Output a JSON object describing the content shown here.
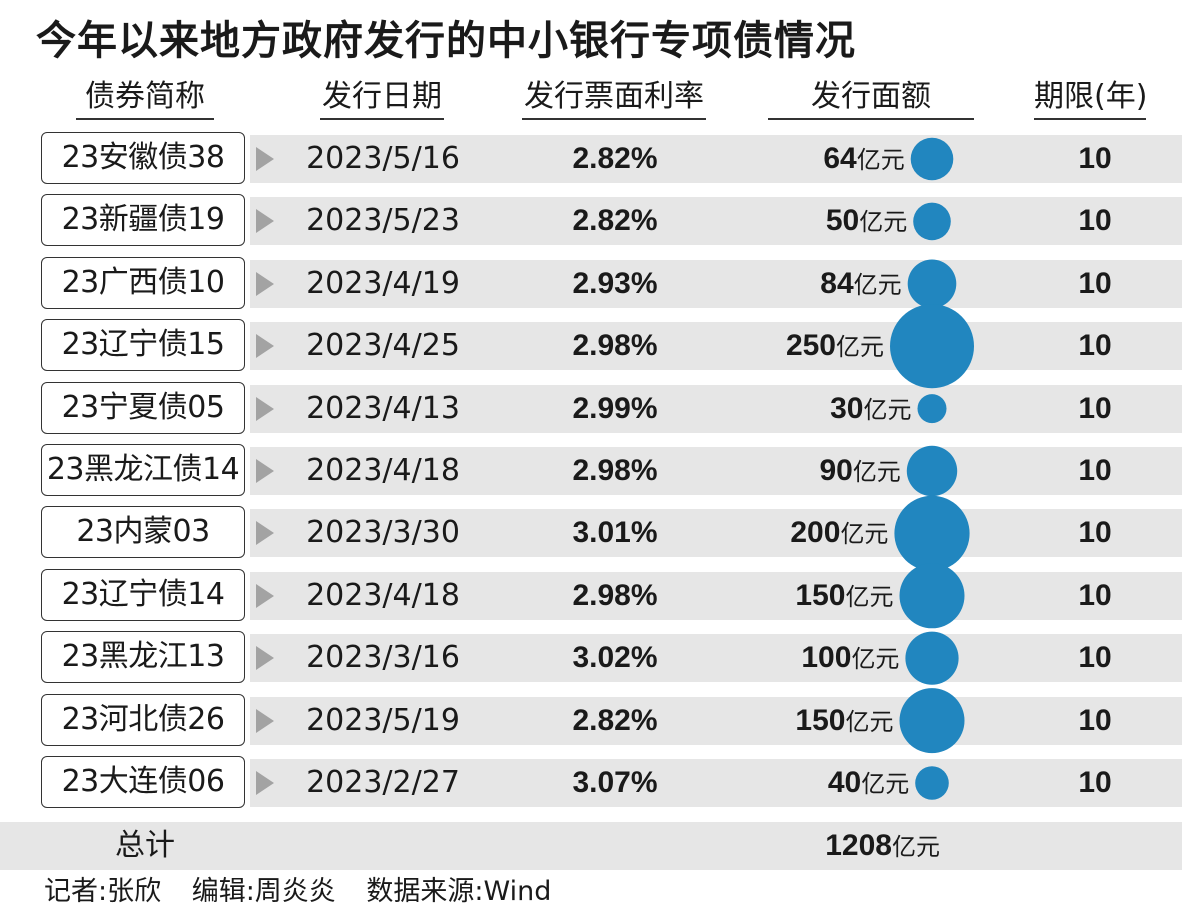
{
  "title": "今年以来地方政府发行的中小银行专项债情况",
  "headers": {
    "name": "债券简称",
    "date": "发行日期",
    "rate": "发行票面利率",
    "amount": "发行面额",
    "term": "期限(年)"
  },
  "unit": "亿元",
  "bubble_color": "#2186bf",
  "chart_data": {
    "type": "table",
    "columns": [
      "债券简称",
      "发行日期",
      "发行票面利率",
      "发行面额",
      "期限(年)"
    ],
    "rows": [
      {
        "name": "23安徽债38",
        "date": "2023/5/16",
        "rate": "2.82%",
        "amount": 64,
        "term": "10"
      },
      {
        "name": "23新疆债19",
        "date": "2023/5/23",
        "rate": "2.82%",
        "amount": 50,
        "term": "10"
      },
      {
        "name": "23广西债10",
        "date": "2023/4/19",
        "rate": "2.93%",
        "amount": 84,
        "term": "10"
      },
      {
        "name": "23辽宁债15",
        "date": "2023/4/25",
        "rate": "2.98%",
        "amount": 250,
        "term": "10"
      },
      {
        "name": "23宁夏债05",
        "date": "2023/4/13",
        "rate": "2.99%",
        "amount": 30,
        "term": "10"
      },
      {
        "name": "23黑龙江债14",
        "date": "2023/4/18",
        "rate": "2.98%",
        "amount": 90,
        "term": "10"
      },
      {
        "name": "23内蒙03",
        "date": "2023/3/30",
        "rate": "3.01%",
        "amount": 200,
        "term": "10"
      },
      {
        "name": "23辽宁债14",
        "date": "2023/4/18",
        "rate": "2.98%",
        "amount": 150,
        "term": "10"
      },
      {
        "name": "23黑龙江13",
        "date": "2023/3/16",
        "rate": "3.02%",
        "amount": 100,
        "term": "10"
      },
      {
        "name": "23河北债26",
        "date": "2023/5/19",
        "rate": "2.82%",
        "amount": 150,
        "term": "10"
      },
      {
        "name": "23大连债06",
        "date": "2023/2/27",
        "rate": "3.07%",
        "amount": 40,
        "term": "10"
      }
    ],
    "total_label": "总计",
    "total_amount": "1208"
  },
  "footer": {
    "reporter": "记者:张欣",
    "editor": "编辑:周炎炎",
    "source": "数据来源:Wind"
  }
}
